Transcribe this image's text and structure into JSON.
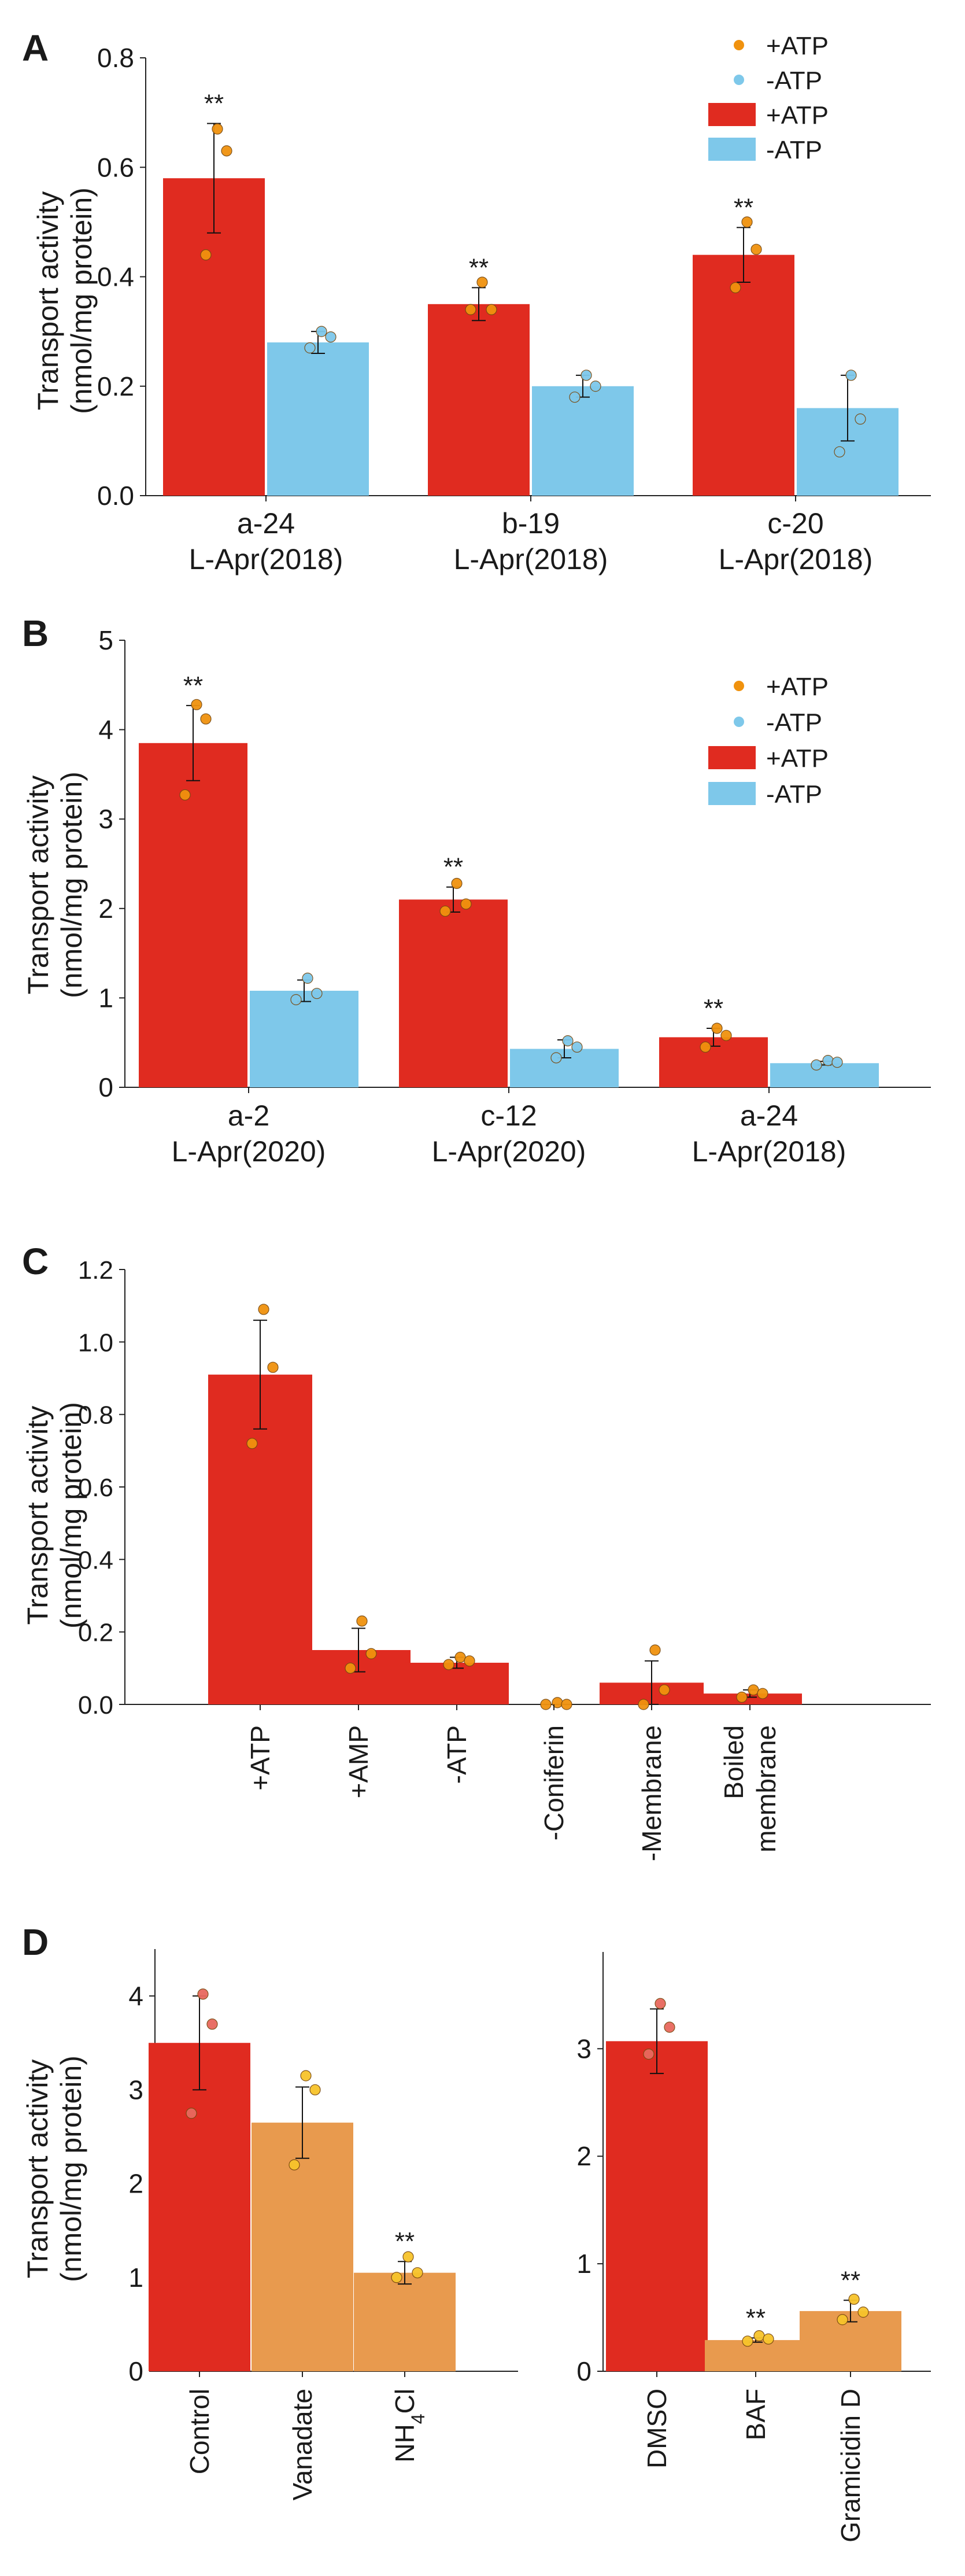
{
  "colors": {
    "red": "#e02b20",
    "blue": "#7ec8ea",
    "orange": "#e89a4e",
    "dot_orange": "#f0920e",
    "dot_blue": "#7ec8ea",
    "dot_salmon": "#e8695e",
    "dot_yellow": "#f7c42b"
  },
  "chart_data": [
    {
      "panel": "A",
      "type": "bar",
      "ylabel": [
        "Transport activity",
        "(nmol/mg protein)"
      ],
      "ylim": [
        0,
        0.8
      ],
      "yticks": [
        "0.0",
        "0.2",
        "0.4",
        "0.6",
        "0.8"
      ],
      "categories": [
        [
          "a-24",
          "L-Apr(2018)"
        ],
        [
          "b-19",
          "L-Apr(2018)"
        ],
        [
          "c-20",
          "L-Apr(2018)"
        ]
      ],
      "legend": {
        "position": "top-right",
        "entries": [
          "+ATP",
          "-ATP",
          "+ATP",
          "-ATP"
        ]
      },
      "series": [
        {
          "name": "+ATP",
          "values": [
            0.58,
            0.35,
            0.44
          ],
          "errors": [
            0.1,
            0.03,
            0.05
          ],
          "points": [
            [
              0.67,
              0.63,
              0.44
            ],
            [
              0.39,
              0.34,
              0.34
            ],
            [
              0.5,
              0.45,
              0.38
            ]
          ],
          "sig": [
            "**",
            "**",
            "**"
          ]
        },
        {
          "name": "-ATP",
          "values": [
            0.28,
            0.2,
            0.16
          ],
          "errors": [
            0.02,
            0.02,
            0.06
          ],
          "points": [
            [
              0.3,
              0.29,
              0.27
            ],
            [
              0.22,
              0.2,
              0.18
            ],
            [
              0.22,
              0.14,
              0.08
            ]
          ],
          "sig": [
            "",
            "",
            ""
          ]
        }
      ]
    },
    {
      "panel": "B",
      "type": "bar",
      "ylabel": [
        "Transport activity",
        "(nmol/mg protein)"
      ],
      "ylim": [
        0,
        5
      ],
      "yticks": [
        "0",
        "1",
        "2",
        "3",
        "4",
        "5"
      ],
      "categories": [
        [
          "a-2",
          "L-Apr(2020)"
        ],
        [
          "c-12",
          "L-Apr(2020)"
        ],
        [
          "a-24",
          "L-Apr(2018)"
        ]
      ],
      "legend": {
        "position": "top-right",
        "entries": [
          "+ATP",
          "-ATP",
          "+ATP",
          "-ATP"
        ]
      },
      "series": [
        {
          "name": "+ATP",
          "values": [
            3.85,
            2.1,
            0.56
          ],
          "errors": [
            0.42,
            0.14,
            0.1
          ],
          "points": [
            [
              4.28,
              4.12,
              3.27
            ],
            [
              2.28,
              2.05,
              1.97
            ],
            [
              0.66,
              0.58,
              0.45
            ]
          ],
          "sig": [
            "**",
            "**",
            "**"
          ]
        },
        {
          "name": "-ATP",
          "values": [
            1.08,
            0.43,
            0.27
          ],
          "errors": [
            0.12,
            0.1,
            0.02
          ],
          "points": [
            [
              1.22,
              1.05,
              0.98
            ],
            [
              0.52,
              0.45,
              0.33
            ],
            [
              0.3,
              0.28,
              0.25
            ]
          ],
          "sig": [
            "",
            "",
            ""
          ]
        }
      ]
    },
    {
      "panel": "C",
      "type": "bar",
      "ylabel": [
        "Transport activity",
        "(nmol/mg protein)"
      ],
      "ylim": [
        0,
        1.2
      ],
      "yticks": [
        "0.0",
        "0.2",
        "0.4",
        "0.6",
        "0.8",
        "1.0",
        "1.2"
      ],
      "categories": [
        [
          "+ATP"
        ],
        [
          "+AMP"
        ],
        [
          "-ATP"
        ],
        [
          "-Coniferin"
        ],
        [
          "-Membrane"
        ],
        [
          "Boiled",
          "membrane"
        ]
      ],
      "values": [
        0.91,
        0.15,
        0.115,
        0.0,
        0.06,
        0.03
      ],
      "errors": [
        0.15,
        0.06,
        0.015,
        0.0,
        0.06,
        0.01
      ],
      "points": [
        [
          1.09,
          0.93,
          0.72
        ],
        [
          0.23,
          0.14,
          0.1
        ],
        [
          0.13,
          0.12,
          0.11
        ],
        [
          0.005,
          0.0,
          0.0
        ],
        [
          0.15,
          0.04,
          0.0
        ],
        [
          0.04,
          0.03,
          0.02
        ]
      ]
    },
    {
      "panel": "D",
      "type": "bar",
      "ylabel": [
        "Transport activity",
        "(nmol/mg protein)"
      ],
      "ylim": [
        0,
        4.5
      ],
      "yticks": [
        "0",
        "1",
        "2",
        "3",
        "4"
      ],
      "categories": [
        [
          "Control"
        ],
        [
          "Vanadate"
        ],
        [
          "NH4Cl"
        ]
      ],
      "values": [
        3.5,
        2.65,
        1.05
      ],
      "errors": [
        0.5,
        0.38,
        0.12
      ],
      "points": [
        [
          4.02,
          3.7,
          2.75
        ],
        [
          3.15,
          3.0,
          2.2
        ],
        [
          1.22,
          1.05,
          1.0
        ]
      ],
      "bar_colors": [
        "red",
        "orange",
        "orange"
      ],
      "sig": [
        "",
        "",
        "**"
      ]
    },
    {
      "panel": "D",
      "type": "bar",
      "ylim": [
        0,
        3.9
      ],
      "yticks": [
        "0",
        "1",
        "2",
        "3"
      ],
      "categories": [
        [
          "DMSO"
        ],
        [
          "BAF"
        ],
        [
          "Gramicidin D"
        ]
      ],
      "values": [
        3.07,
        0.29,
        0.56
      ],
      "errors": [
        0.3,
        0.02,
        0.1
      ],
      "points": [
        [
          3.42,
          3.2,
          2.95
        ],
        [
          0.33,
          0.3,
          0.28
        ],
        [
          0.67,
          0.55,
          0.48
        ]
      ],
      "bar_colors": [
        "red",
        "orange",
        "orange"
      ],
      "sig": [
        "",
        "**",
        "**"
      ]
    }
  ]
}
